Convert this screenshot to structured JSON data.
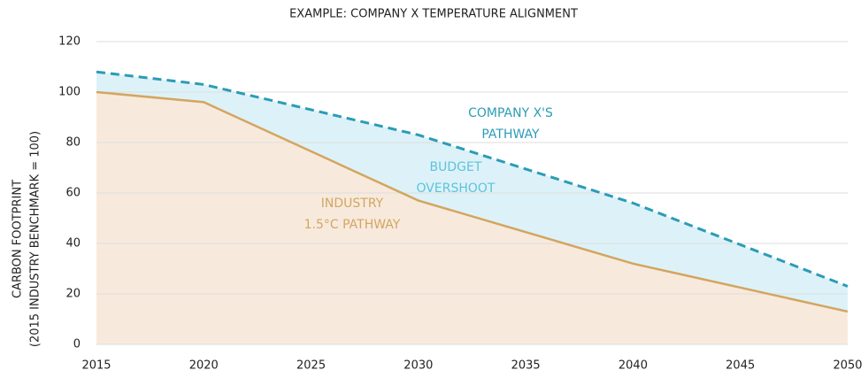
{
  "chart_data": {
    "type": "area",
    "title": "EXAMPLE: COMPANY X TEMPERATURE ALIGNMENT",
    "y_label": [
      "CARBON FOOTPRINT",
      "(2015 INDUSTRY BENCHMARK = 100)"
    ],
    "x": [
      2015,
      2020,
      2030,
      2040,
      2050
    ],
    "series": [
      {
        "name": "COMPANY X'S PATHWAY",
        "color": "#2b9cb6",
        "fill": "#ddf2f8",
        "dashed": true,
        "values": [
          108,
          103,
          83,
          56,
          23
        ]
      },
      {
        "name": "INDUSTRY 1.5°C PATHWAY",
        "color": "#d4a560",
        "fill": "#f7eadd",
        "dashed": false,
        "values": [
          100,
          96,
          57,
          32,
          13
        ]
      }
    ],
    "annotations": [
      {
        "lines": [
          "COMPANY X'S",
          "PATHWAY"
        ],
        "color": "#2b9cb6"
      },
      {
        "lines": [
          "BUDGET",
          "OVERSHOOT"
        ],
        "color": "#5cc3dc"
      },
      {
        "lines": [
          "INDUSTRY",
          "1.5°C PATHWAY"
        ],
        "color": "#d4a560"
      }
    ],
    "xlim": [
      2015,
      2050
    ],
    "xticks": [
      2015,
      2020,
      2025,
      2030,
      2035,
      2040,
      2045,
      2050
    ],
    "ylim": [
      0,
      120
    ],
    "yticks": [
      0,
      20,
      40,
      60,
      80,
      100,
      120
    ],
    "grid": true
  }
}
